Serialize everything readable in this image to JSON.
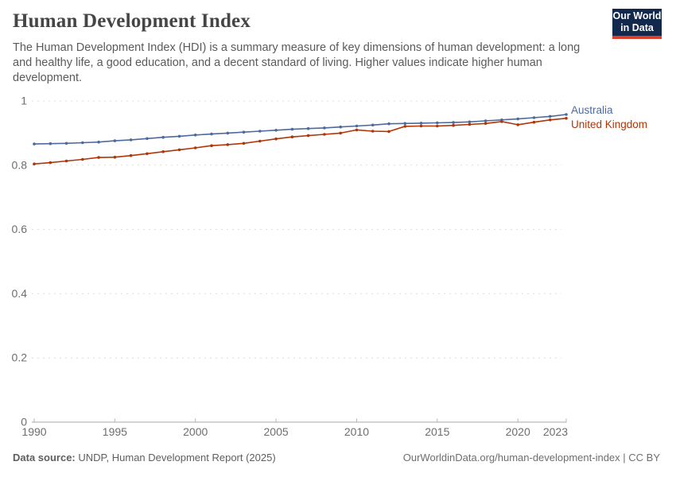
{
  "header": {
    "title": "Human Development Index",
    "subtitle": "The Human Development Index (HDI) is a summary measure of key dimensions of human development: a long and healthy life, a good education, and a decent standard of living. Higher values indicate higher human development."
  },
  "logo": {
    "line1": "Our World",
    "line2": "in Data",
    "bg_color": "#12294d",
    "accent_color": "#dc3e2c"
  },
  "footer": {
    "source_label": "Data source:",
    "source_text": " UNDP, Human Development Report (2025)",
    "rights": "OurWorldinData.org/human-development-index | CC BY"
  },
  "chart_data": {
    "type": "line",
    "title": "Human Development Index",
    "x": [
      1990,
      1991,
      1992,
      1993,
      1994,
      1995,
      1996,
      1997,
      1998,
      1999,
      2000,
      2001,
      2002,
      2003,
      2004,
      2005,
      2006,
      2007,
      2008,
      2009,
      2010,
      2011,
      2012,
      2013,
      2014,
      2015,
      2016,
      2017,
      2018,
      2019,
      2020,
      2021,
      2022,
      2023
    ],
    "series": [
      {
        "name": "Australia",
        "color": "#4C6A9C",
        "values": [
          0.866,
          0.867,
          0.868,
          0.87,
          0.872,
          0.876,
          0.879,
          0.883,
          0.887,
          0.89,
          0.894,
          0.897,
          0.9,
          0.903,
          0.906,
          0.909,
          0.912,
          0.914,
          0.916,
          0.919,
          0.922,
          0.925,
          0.929,
          0.93,
          0.931,
          0.932,
          0.933,
          0.935,
          0.938,
          0.941,
          0.944,
          0.948,
          0.952,
          0.958
        ]
      },
      {
        "name": "United Kingdom",
        "color": "#B13507",
        "values": [
          0.804,
          0.808,
          0.813,
          0.818,
          0.824,
          0.825,
          0.83,
          0.836,
          0.842,
          0.848,
          0.854,
          0.861,
          0.864,
          0.868,
          0.875,
          0.882,
          0.888,
          0.892,
          0.896,
          0.9,
          0.91,
          0.906,
          0.905,
          0.921,
          0.922,
          0.922,
          0.924,
          0.927,
          0.93,
          0.936,
          0.926,
          0.934,
          0.941,
          0.946
        ]
      }
    ],
    "xlabel": "",
    "ylabel": "",
    "ylim": [
      0,
      1
    ],
    "yticks": [
      0,
      0.2,
      0.4,
      0.6,
      0.8,
      1
    ],
    "xticks": [
      1990,
      1995,
      2000,
      2005,
      2010,
      2015,
      2020,
      2023
    ],
    "grid": "horizontal-dashed",
    "legend_position": "right-of-line-ends",
    "colors": {
      "gridline": "#dcdcdc",
      "axis_line": "#a8a8a8",
      "tick_mark": "#b5b5b5",
      "tick_label": "#6e6e6e"
    }
  }
}
